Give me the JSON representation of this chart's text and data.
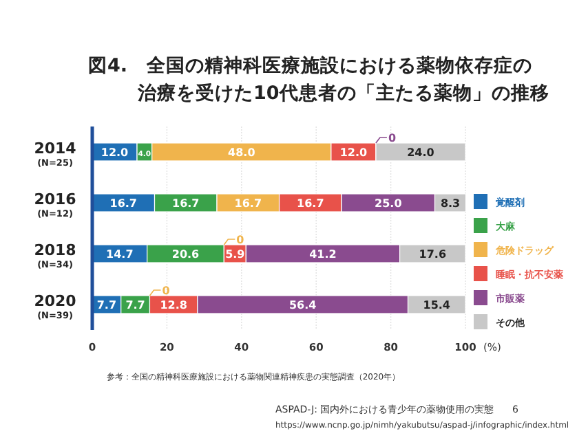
{
  "chart_data": {
    "type": "bar",
    "orientation": "horizontal",
    "stacked": true,
    "title": "図4.　全国の精神科医療施設における薬物依存症の治療を受けた10代患者の「主たる薬物」の推移",
    "categories": [
      "2014 (N=25)",
      "2016 (N=12)",
      "2018 (N=34)",
      "2020 (N=39)"
    ],
    "series": [
      {
        "name": "覚醒剤",
        "color": "#1f6fb5",
        "values": [
          12.0,
          16.7,
          14.7,
          7.7
        ],
        "value_labels": [
          "12.0",
          "16.7",
          "14.7",
          "7.7"
        ]
      },
      {
        "name": "大麻",
        "color": "#3aa24a",
        "values": [
          4.0,
          16.7,
          20.6,
          7.7
        ],
        "value_labels": [
          "4.0",
          "16.7",
          "20.6",
          "7.7"
        ]
      },
      {
        "name": "危険ドラッグ",
        "color": "#f0b44c",
        "values": [
          48.0,
          16.7,
          0,
          0
        ],
        "value_labels": [
          "48.0",
          "16.7",
          null,
          null
        ]
      },
      {
        "name": "睡眠・抗不安薬",
        "color": "#e8524a",
        "values": [
          12.0,
          16.7,
          5.9,
          12.8
        ],
        "value_labels": [
          "12.0",
          "16.7",
          "5.9",
          "12.8"
        ]
      },
      {
        "name": "市販薬",
        "color": "#8a4b8f",
        "values": [
          0,
          25.0,
          41.2,
          56.4
        ],
        "value_labels": [
          null,
          "25.0",
          "41.2",
          "56.4"
        ]
      },
      {
        "name": "その他",
        "color": "#c8c8c8",
        "values": [
          24.0,
          8.3,
          17.6,
          15.4
        ],
        "value_labels": [
          "24.0",
          "8.3",
          "17.6",
          "15.4"
        ]
      }
    ],
    "xlim": [
      0,
      100
    ],
    "xticks": [
      0,
      20,
      40,
      60,
      80,
      100
    ],
    "xlabel": "(%)",
    "grid": "x",
    "legend": "right",
    "annotations": [
      {
        "text": "0",
        "x": 76.0,
        "y": "2014 (N=25)"
      },
      {
        "text": "0",
        "x": 35.3,
        "y": "2018 (N=34)"
      },
      {
        "text": "0",
        "x": 15.4,
        "y": "2020 (N=39)"
      },
      "参考：全国の精神科医療施設における薬物関連精神疾患の実態調査（2020年）",
      "ASPAD-J: 国内外における青少年の薬物使用の実態",
      "6",
      "https://www.ncnp.go.jp/nimh/yakubutsu/aspad-j/infographic/index.html"
    ]
  }
}
